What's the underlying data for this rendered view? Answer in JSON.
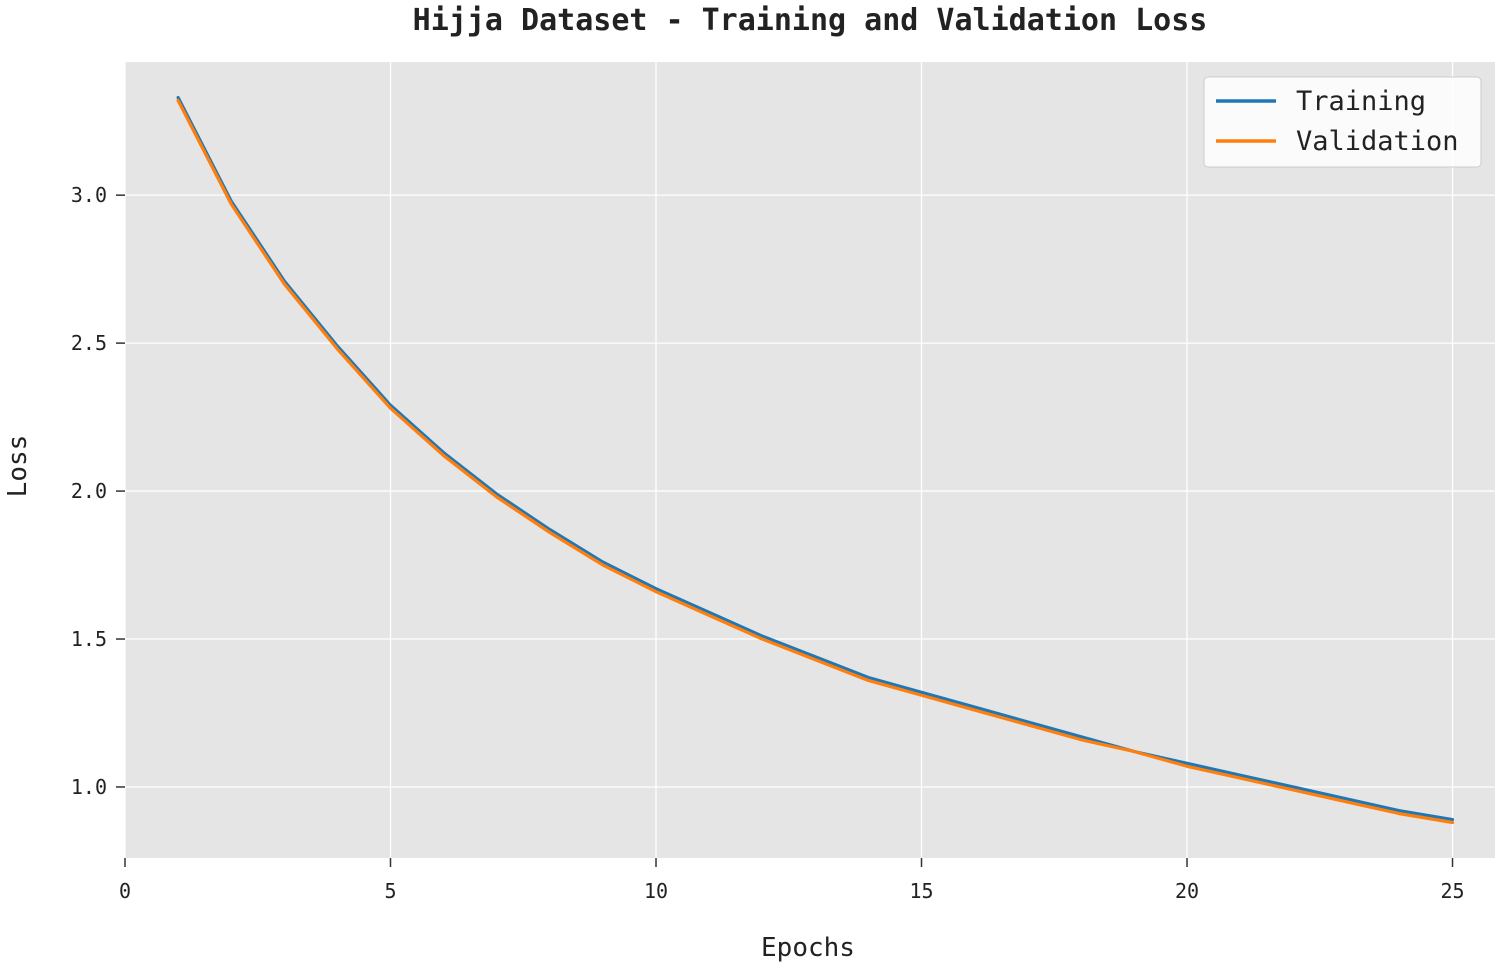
{
  "colors": {
    "background": "#e5e5e5",
    "grid": "#ffffff",
    "training": "#1f77b4",
    "validation": "#ff7f0e"
  },
  "chart_data": {
    "type": "line",
    "title": "Hijja Dataset - Training and Validation Loss",
    "xlabel": "Epochs",
    "ylabel": "Loss",
    "xlim": [
      0,
      25.8
    ],
    "ylim": [
      0.76,
      3.45
    ],
    "xticks": [
      0,
      5,
      10,
      15,
      20,
      25
    ],
    "yticks": [
      1.0,
      1.5,
      2.0,
      2.5,
      3.0
    ],
    "grid": true,
    "legend_position": "top-right",
    "x": [
      1,
      2,
      3,
      4,
      5,
      6,
      7,
      8,
      9,
      10,
      11,
      12,
      13,
      14,
      15,
      16,
      17,
      18,
      19,
      20,
      21,
      22,
      23,
      24,
      25
    ],
    "series": [
      {
        "name": "Training",
        "color_key": "training",
        "values": [
          3.33,
          2.98,
          2.71,
          2.49,
          2.29,
          2.13,
          1.99,
          1.87,
          1.76,
          1.67,
          1.59,
          1.51,
          1.44,
          1.37,
          1.32,
          1.27,
          1.22,
          1.17,
          1.12,
          1.08,
          1.04,
          1.0,
          0.96,
          0.92,
          0.89
        ]
      },
      {
        "name": "Validation",
        "color_key": "validation",
        "values": [
          3.32,
          2.97,
          2.7,
          2.48,
          2.28,
          2.12,
          1.98,
          1.86,
          1.75,
          1.66,
          1.58,
          1.5,
          1.43,
          1.36,
          1.31,
          1.26,
          1.21,
          1.16,
          1.12,
          1.07,
          1.03,
          0.99,
          0.95,
          0.91,
          0.88
        ]
      }
    ]
  }
}
